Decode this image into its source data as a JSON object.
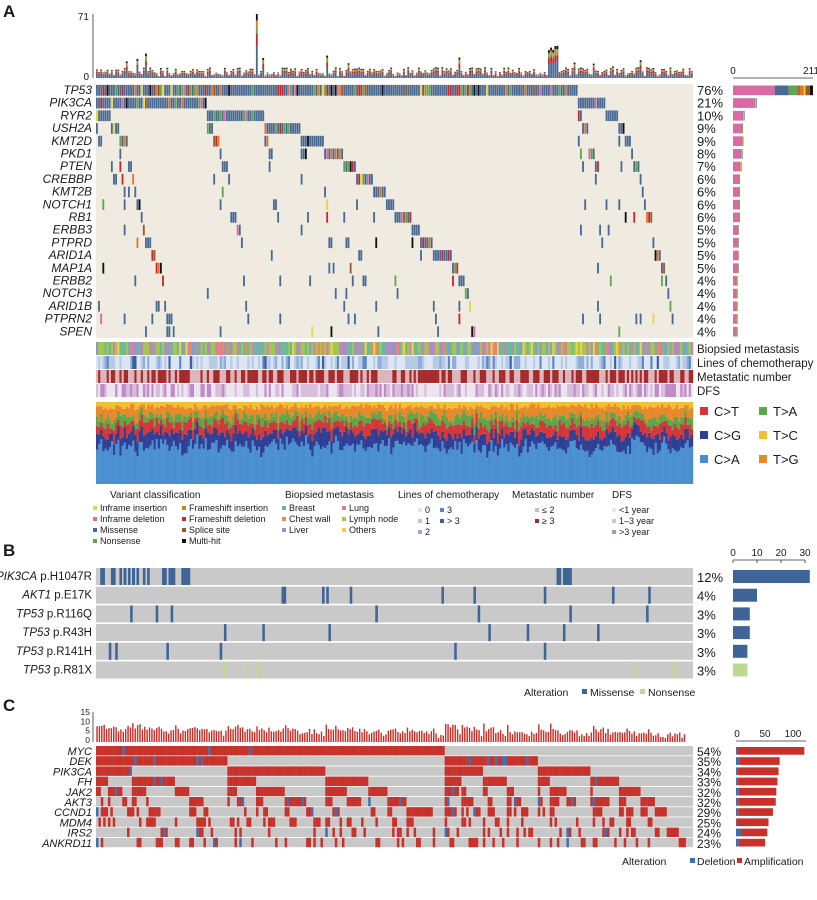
{
  "panel_labels": {
    "a": "A",
    "b": "B",
    "c": "C"
  },
  "chart_data": [
    {
      "type": "heatmap",
      "panel": "A",
      "top_axis_ticks": [
        "71",
        "0"
      ],
      "top_max": 71,
      "genes": [
        "TP53",
        "PIK3CA",
        "RYR2",
        "USH2A",
        "KMT2D",
        "PKD1",
        "PTEN",
        "CREBBP",
        "KMT2B",
        "NOTCH1",
        "RB1",
        "ERBB3",
        "PTPRD",
        "ARID1A",
        "MAP1A",
        "ERBB2",
        "NOTCH3",
        "ARID1B",
        "PTPRN2",
        "SPEN"
      ],
      "percent": [
        "76%",
        "21%",
        "10%",
        "9%",
        "9%",
        "8%",
        "7%",
        "6%",
        "6%",
        "6%",
        "6%",
        "5%",
        "5%",
        "5%",
        "5%",
        "4%",
        "4%",
        "4%",
        "4%",
        "4%"
      ],
      "percent_values": [
        76,
        21,
        10,
        9,
        9,
        8,
        7,
        6,
        6,
        6,
        6,
        5,
        5,
        5,
        5,
        4,
        4,
        4,
        4,
        4
      ],
      "right_axis_ticks": [
        "0",
        "211"
      ],
      "right_max": 211,
      "mutation_counts": [
        211,
        62,
        30,
        26,
        27,
        25,
        22,
        18,
        18,
        18,
        18,
        15,
        15,
        15,
        15,
        12,
        12,
        12,
        12,
        12
      ],
      "tracks": [
        "Biopsied metastasis",
        "Lines of chemotherapy",
        "Metastatic number",
        "DFS"
      ],
      "signature_legend": [
        {
          "label": "C>T",
          "color": "#d4363a"
        },
        {
          "label": "T>A",
          "color": "#5aa84a"
        },
        {
          "label": "C>G",
          "color": "#2e3f95"
        },
        {
          "label": "T>C",
          "color": "#f0c030"
        },
        {
          "label": "C>A",
          "color": "#4a90d0"
        },
        {
          "label": "T>G",
          "color": "#e8882a"
        }
      ],
      "legend": {
        "variant_title": "Variant classification",
        "variant": [
          {
            "label": "Inframe insertion",
            "color": "#e8d63a"
          },
          {
            "label": "Inframe deletion",
            "color": "#d96aa5"
          },
          {
            "label": "Missense",
            "color": "#4a6a94"
          },
          {
            "label": "Nonsense",
            "color": "#5fa84a"
          },
          {
            "label": "Frameshift insertion",
            "color": "#e0782a"
          },
          {
            "label": "Frameshift deletion",
            "color": "#c8262e"
          },
          {
            "label": "Splice site",
            "color": "#9a5a2a"
          },
          {
            "label": "Multi-hit",
            "color": "#111111"
          }
        ],
        "biopsied_title": "Biopsied metastasis",
        "biopsied": [
          {
            "label": "Breast",
            "color": "#6db89a"
          },
          {
            "label": "Chest wall",
            "color": "#e88a5a"
          },
          {
            "label": "Liver",
            "color": "#8a9bc8"
          },
          {
            "label": "Lung",
            "color": "#d67bb5"
          },
          {
            "label": "Lymph node",
            "color": "#a0c850"
          },
          {
            "label": "Others",
            "color": "#f0d040"
          }
        ],
        "chemo_title": "Lines of chemotherapy",
        "chemo": [
          {
            "label": "0",
            "color": "#dbe5f3"
          },
          {
            "label": "1",
            "color": "#b6cae6"
          },
          {
            "label": "2",
            "color": "#8eadd8"
          },
          {
            "label": "3",
            "color": "#5f85bf"
          },
          {
            "label": "> 3",
            "color": "#3a5ea0"
          }
        ],
        "metastatic_title": "Metastatic number",
        "metastatic": [
          {
            "label": "≤ 2",
            "color": "#dcb4bc"
          },
          {
            "label": "≥ 3",
            "color": "#a52a2a"
          }
        ],
        "dfs_title": "DFS",
        "dfs": [
          {
            "label": "<1 year",
            "color": "#ece4ee"
          },
          {
            "label": "1–3 year",
            "color": "#d6bedb"
          },
          {
            "label": ">3 year",
            "color": "#c08ac8"
          }
        ]
      }
    },
    {
      "type": "heatmap",
      "panel": "B",
      "rows": [
        {
          "gene": "PIK3CA",
          "variant": "p.H1047R",
          "percent": "12%",
          "count": 32,
          "alteration": "Missense"
        },
        {
          "gene": "AKT1",
          "variant": "p.E17K",
          "percent": "4%",
          "count": 10,
          "alteration": "Missense"
        },
        {
          "gene": "TP53",
          "variant": "p.R116Q",
          "percent": "3%",
          "count": 7,
          "alteration": "Missense"
        },
        {
          "gene": "TP53",
          "variant": "p.R43H",
          "percent": "3%",
          "count": 7,
          "alteration": "Missense"
        },
        {
          "gene": "TP53",
          "variant": "p.R141H",
          "percent": "3%",
          "count": 6,
          "alteration": "Missense"
        },
        {
          "gene": "TP53",
          "variant": "p.R81X",
          "percent": "3%",
          "count": 6,
          "alteration": "Nonsense"
        }
      ],
      "right_axis_ticks": [
        "0",
        "10",
        "20",
        "30"
      ],
      "right_max": 30,
      "legend_title": "Alteration",
      "legend": [
        {
          "label": "Missense",
          "color": "#3f6598"
        },
        {
          "label": "Nonsense",
          "color": "#bcd98f"
        }
      ]
    },
    {
      "type": "heatmap",
      "panel": "C",
      "top_axis_ticks": [
        "15",
        "10",
        "5",
        "0"
      ],
      "top_max": 15,
      "genes": [
        "MYC",
        "DEK",
        "PIK3CA",
        "FH",
        "JAK2",
        "AKT3",
        "CCND1",
        "MDM4",
        "IRS2",
        "ANKRD11"
      ],
      "percent": [
        "54%",
        "35%",
        "34%",
        "33%",
        "32%",
        "32%",
        "29%",
        "25%",
        "24%",
        "23%"
      ],
      "percent_values": [
        54,
        35,
        34,
        33,
        32,
        32,
        29,
        25,
        24,
        23
      ],
      "amplification": [
        120,
        72,
        73,
        71,
        67,
        67,
        62,
        57,
        47,
        47
      ],
      "deletion": [
        2,
        6,
        3,
        3,
        5,
        4,
        4,
        1,
        9,
        5
      ],
      "right_axis_ticks": [
        "0",
        "50",
        "100"
      ],
      "legend_title": "Alteration",
      "legend": [
        {
          "label": "Deletion",
          "color": "#3f6fb0"
        },
        {
          "label": "Amplification",
          "color": "#c8302a"
        }
      ]
    }
  ]
}
